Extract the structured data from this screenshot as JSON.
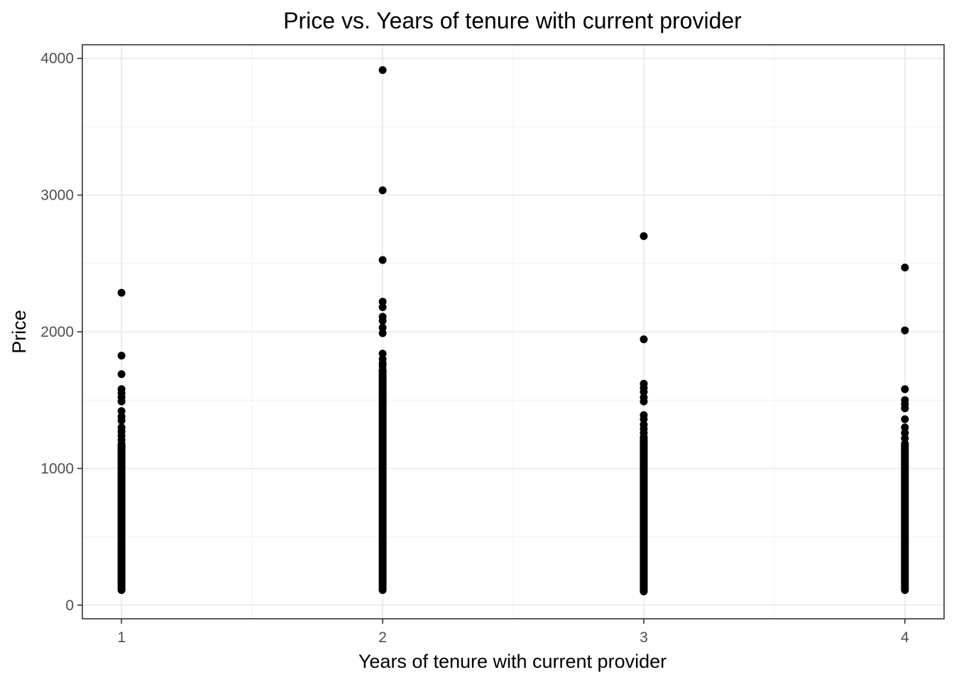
{
  "chart_data": {
    "type": "scatter",
    "title": "Price vs. Years of tenure with current provider",
    "xlabel": "Years of tenure with current provider",
    "ylabel": "Price",
    "xlim": [
      0.85,
      4.15
    ],
    "ylim": [
      -100,
      4100
    ],
    "x_ticks": [
      1,
      2,
      3,
      4
    ],
    "x_tick_labels": [
      "1",
      "2",
      "3",
      "4"
    ],
    "y_ticks": [
      0,
      1000,
      2000,
      3000,
      4000
    ],
    "y_tick_labels": [
      "0",
      "1000",
      "2000",
      "3000",
      "4000"
    ],
    "y_minor_ticks": [
      500,
      1500,
      2500,
      3500
    ],
    "x_minor_ticks": [
      1.5,
      2.5,
      3.5
    ],
    "grid": true,
    "legend": "none",
    "point_color": "#000000",
    "series": [
      {
        "values_by_x": [
          {
            "x": 1,
            "dense_range": [
              110,
              1180
            ],
            "outliers": [
              2285,
              1825,
              1690,
              1580,
              1550,
              1520,
              1490,
              1420,
              1380,
              1350,
              1300,
              1270,
              1240,
              1210
            ]
          },
          {
            "x": 2,
            "dense_range": [
              110,
              1720
            ],
            "outliers": [
              3915,
              3035,
              2525,
              2220,
              2180,
              2110,
              2080,
              2030,
              1990,
              1840,
              1800,
              1770,
              1750
            ]
          },
          {
            "x": 3,
            "dense_range": [
              100,
              1230
            ],
            "outliers": [
              2700,
              1945,
              1620,
              1590,
              1560,
              1520,
              1490,
              1390,
              1360,
              1320,
              1290,
              1260
            ]
          },
          {
            "x": 4,
            "dense_range": [
              110,
              1180
            ],
            "outliers": [
              2470,
              2010,
              1580,
              1500,
              1470,
              1440,
              1360,
              1300,
              1260,
              1220
            ]
          }
        ]
      }
    ]
  }
}
